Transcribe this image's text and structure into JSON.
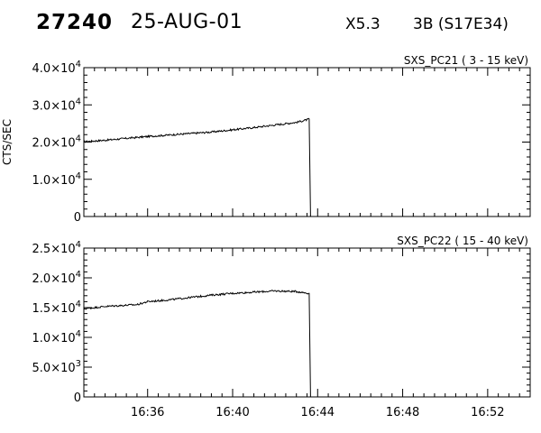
{
  "header": {
    "event_id": "27240",
    "date": "25-AUG-01",
    "goes_class": "X5.3",
    "optical": "3B (S17E34)"
  },
  "chart_data": [
    {
      "type": "line",
      "title": "SXS_PC21  (  3 - 15 keV)",
      "ylabel": "CTS/SEC",
      "xlim": [
        "16:33:00",
        "16:54:00"
      ],
      "ylim": [
        0,
        40000
      ],
      "yticks": [
        {
          "value": 0,
          "mant": "0",
          "exp": ""
        },
        {
          "value": 10000,
          "mant": "1.0×10",
          "exp": "4"
        },
        {
          "value": 20000,
          "mant": "2.0×10",
          "exp": "4"
        },
        {
          "value": 30000,
          "mant": "3.0×10",
          "exp": "4"
        },
        {
          "value": 40000,
          "mant": "4.0×10",
          "exp": "4"
        }
      ],
      "series": [
        {
          "x": [
            "16:33:00",
            "16:34:00",
            "16:35:00",
            "16:36:00",
            "16:37:00",
            "16:38:00",
            "16:39:00",
            "16:40:00",
            "16:41:00",
            "16:42:00",
            "16:43:00",
            "16:43:30",
            "16:43:36",
            "16:43:40"
          ],
          "y": [
            20100,
            20500,
            21000,
            21500,
            21900,
            22300,
            22700,
            23300,
            23900,
            24600,
            25300,
            26000,
            26200,
            0
          ]
        }
      ]
    },
    {
      "type": "line",
      "title": "SXS_PC22  ( 15 - 40 keV)",
      "ylabel": "",
      "xlim": [
        "16:33:00",
        "16:54:00"
      ],
      "ylim": [
        0,
        25000
      ],
      "xticks": [
        "16:36",
        "16:40",
        "16:44",
        "16:48",
        "16:52"
      ],
      "yticks": [
        {
          "value": 0,
          "mant": "0",
          "exp": ""
        },
        {
          "value": 5000,
          "mant": "5.0×10",
          "exp": "3"
        },
        {
          "value": 10000,
          "mant": "1.0×10",
          "exp": "4"
        },
        {
          "value": 15000,
          "mant": "1.5×10",
          "exp": "4"
        },
        {
          "value": 20000,
          "mant": "2.0×10",
          "exp": "4"
        },
        {
          "value": 25000,
          "mant": "2.5×10",
          "exp": "4"
        }
      ],
      "series": [
        {
          "x": [
            "16:33:00",
            "16:34:00",
            "16:35:00",
            "16:35:30",
            "16:36:00",
            "16:37:00",
            "16:38:00",
            "16:39:00",
            "16:40:00",
            "16:41:00",
            "16:42:00",
            "16:43:00",
            "16:43:36",
            "16:43:40"
          ],
          "y": [
            14800,
            15200,
            15400,
            15500,
            16000,
            16300,
            16700,
            17100,
            17400,
            17600,
            17800,
            17700,
            17400,
            0
          ]
        }
      ]
    }
  ]
}
